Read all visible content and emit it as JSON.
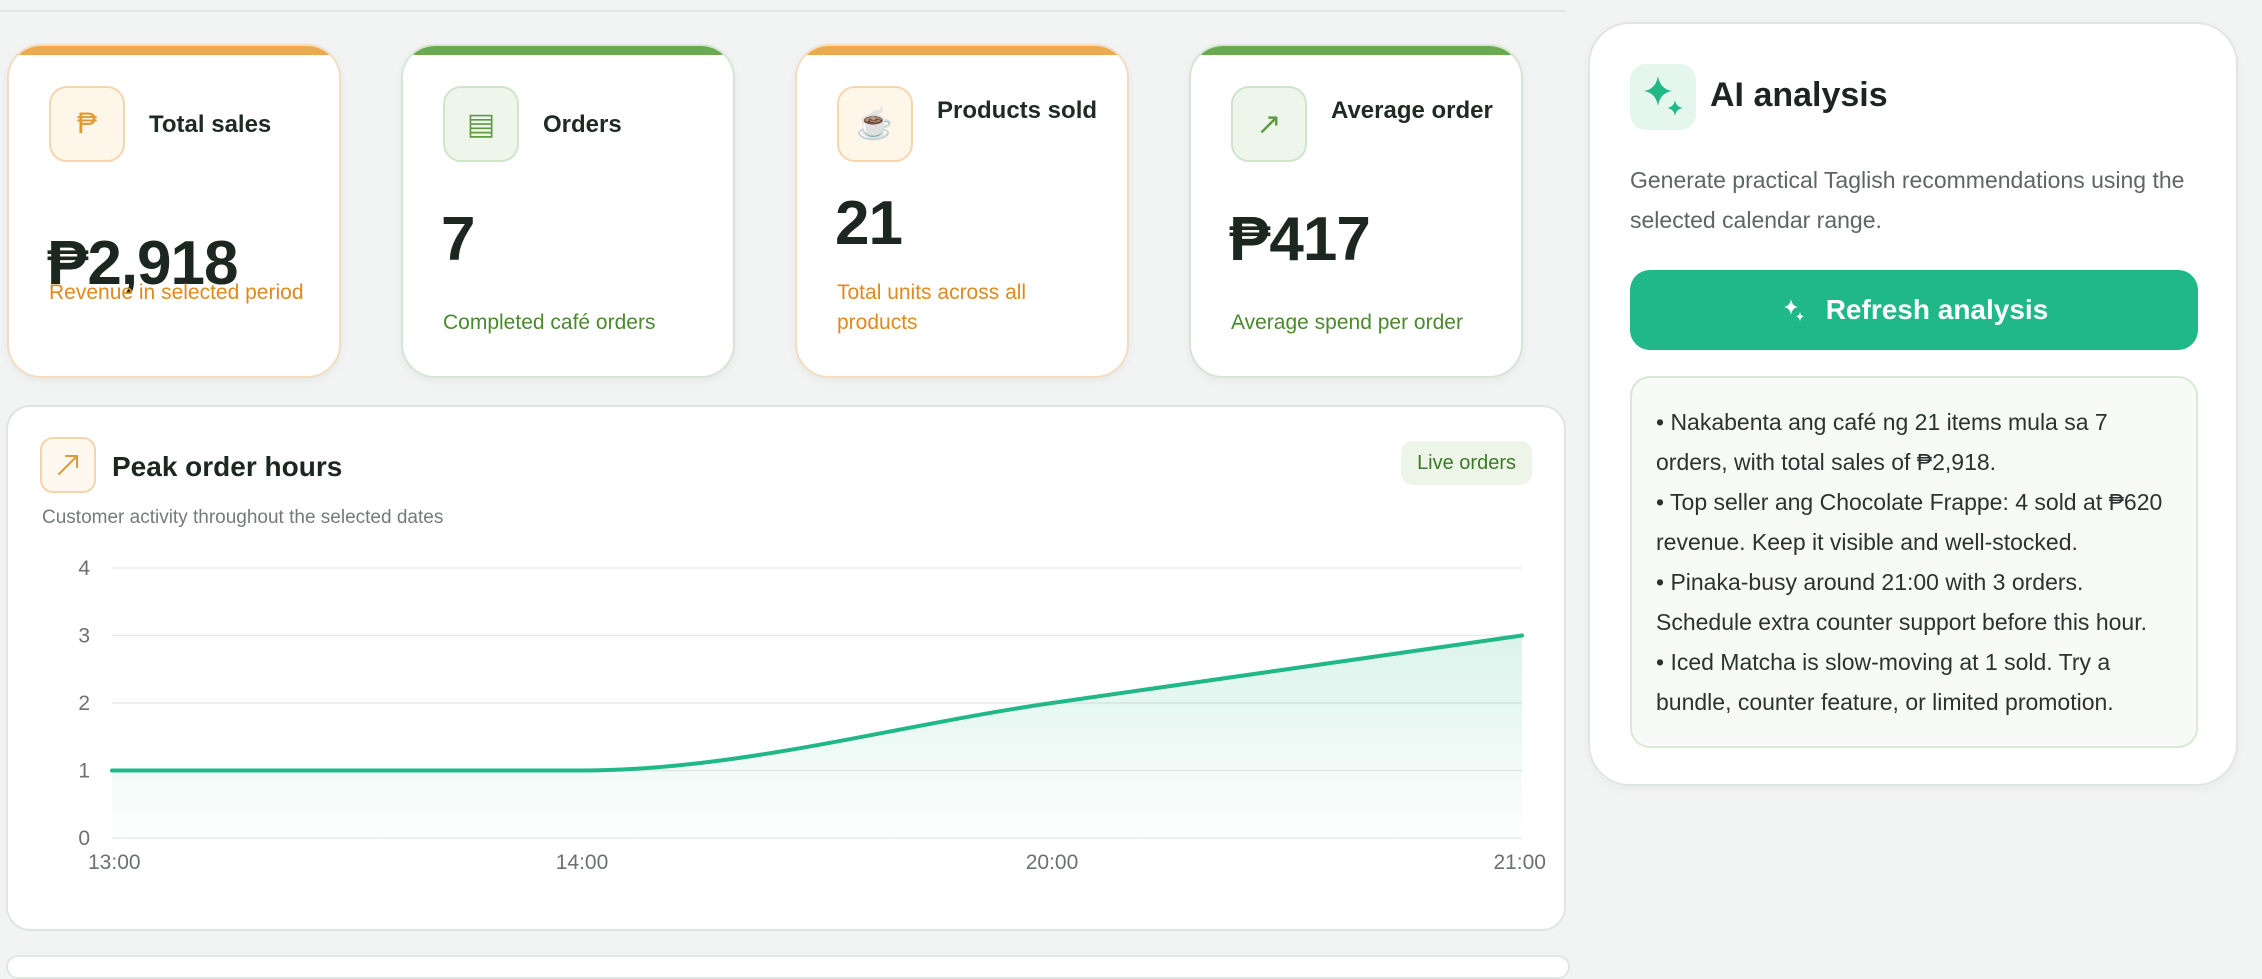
{
  "stats": [
    {
      "label": "Total sales",
      "value": "₱2,918",
      "note": "Revenue in selected period",
      "icon": "peso-icon",
      "icon_glyph": "₱"
    },
    {
      "label": "Orders",
      "value": "7",
      "note": "Completed café orders",
      "icon": "receipt-icon",
      "icon_glyph": "▤"
    },
    {
      "label": "Products sold",
      "value": "21",
      "note": "Total units across all products",
      "icon": "coffee-cup-icon",
      "icon_glyph": "☕"
    },
    {
      "label": "Average order",
      "value": "₱417",
      "note": "Average spend per order",
      "icon": "trend-up-icon",
      "icon_glyph": "↗"
    }
  ],
  "peak_chart": {
    "title": "Peak order hours",
    "subtitle": "Customer activity throughout the selected dates",
    "badge": "Live orders"
  },
  "chart_data": {
    "type": "area",
    "categories": [
      "13:00",
      "14:00",
      "20:00",
      "21:00"
    ],
    "values": [
      1,
      1,
      2,
      3
    ],
    "ylim": [
      0,
      4
    ],
    "yticks": [
      0,
      1,
      2,
      3,
      4
    ],
    "grid": true,
    "smooth": true,
    "color": "#20b886"
  },
  "ai": {
    "title": "AI analysis",
    "description": "Generate practical Taglish recommendations using the selected calendar range.",
    "button_label": "Refresh analysis",
    "insights": [
      "• Nakabenta ang café ng 21 items mula sa 7 orders, with total sales of ₱2,918.",
      "• Top seller ang Chocolate Frappe: 4 sold at ₱620 revenue. Keep it visible and well-stocked.",
      "• Pinaka-busy around 21:00 with 3 orders. Schedule extra counter support before this hour.",
      "• Iced Matcha is slow-moving at 1 sold. Try a bundle, counter feature, or limited promotion."
    ]
  },
  "colors": {
    "accent_green": "#20b886",
    "orange": "#ecaa4c",
    "leaf_green": "#6aab4f"
  }
}
